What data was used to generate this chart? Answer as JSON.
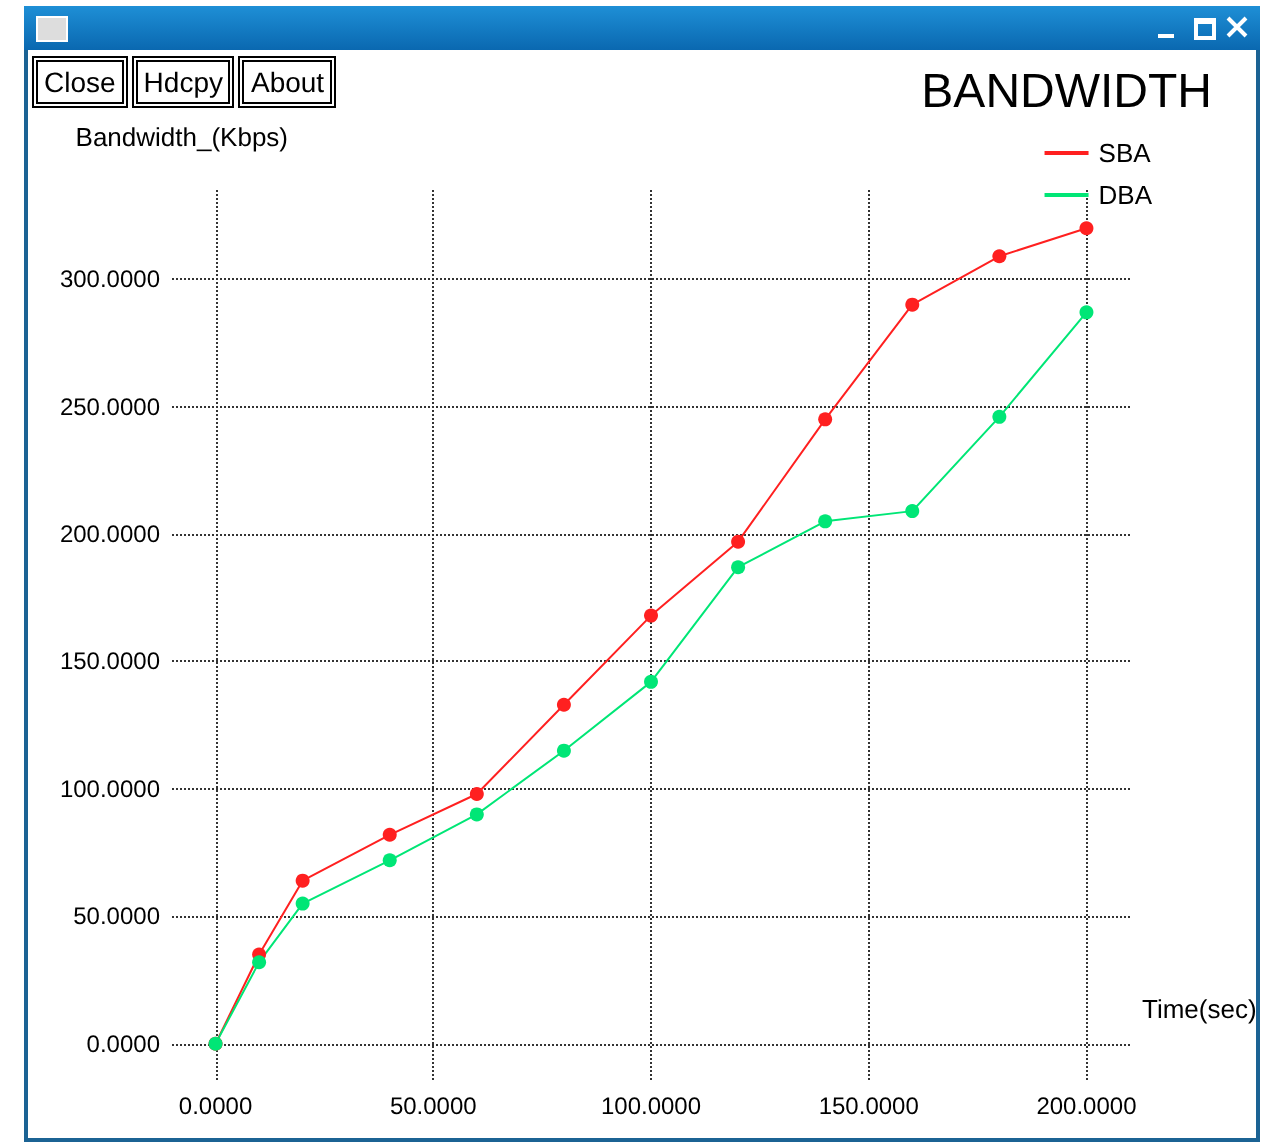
{
  "chart_data": {
    "type": "line",
    "title": "BANDWIDTH",
    "xlabel": "Time(sec)",
    "ylabel": "Bandwidth_(Kbps)",
    "annotations": [
      "Close",
      "Hdcpy",
      "About"
    ],
    "x": [
      0,
      10,
      20,
      40,
      60,
      80,
      100,
      120,
      140,
      160,
      180,
      200
    ],
    "series": [
      {
        "name": "SBA",
        "color": "#ff2020",
        "values": [
          0,
          35,
          64,
          82,
          98,
          133,
          168,
          197,
          245,
          290,
          309,
          320
        ]
      },
      {
        "name": "DBA",
        "color": "#00e676",
        "values": [
          0,
          32,
          55,
          72,
          90,
          115,
          142,
          187,
          205,
          209,
          246,
          287
        ]
      }
    ],
    "xlim": [
      -10,
      210
    ],
    "xticks": [
      {
        "value": 0,
        "label": "0.0000"
      },
      {
        "value": 50,
        "label": "50.0000"
      },
      {
        "value": 100,
        "label": "100.0000"
      },
      {
        "value": 150,
        "label": "150.0000"
      },
      {
        "value": 200,
        "label": "200.0000"
      }
    ],
    "ylim": [
      -15,
      335
    ],
    "yticks": [
      {
        "value": 0,
        "label": "0.0000"
      },
      {
        "value": 50,
        "label": "50.0000"
      },
      {
        "value": 100,
        "label": "100.0000"
      },
      {
        "value": 150,
        "label": "150.0000"
      },
      {
        "value": 200,
        "label": "200.0000"
      },
      {
        "value": 250,
        "label": "250.0000"
      },
      {
        "value": 300,
        "label": "300.0000"
      }
    ],
    "grid": true,
    "legend": "top right",
    "marker": "circle",
    "line_style": "solid"
  }
}
